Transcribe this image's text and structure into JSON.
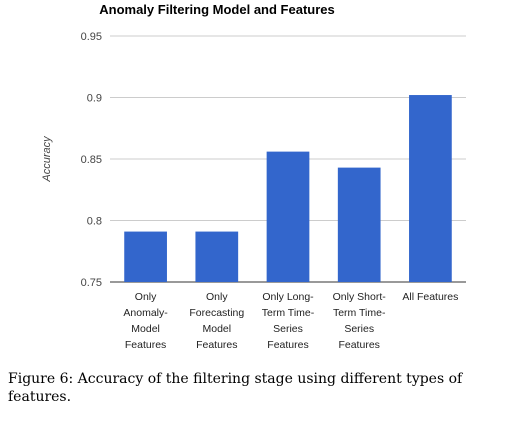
{
  "chart_data": {
    "type": "bar",
    "title": "Anomaly Filtering Model and Features",
    "ylabel": "Accuracy",
    "xlabel": "",
    "ylim": [
      0.75,
      0.95
    ],
    "yticks": [
      "0.75",
      "0.8",
      "0.85",
      "0.9",
      "0.95"
    ],
    "categories": [
      "Only Anomaly-Model Features",
      "Only Forecasting Model Features",
      "Only Long-Term Time-Series Features",
      "Only Short-Term Time-Series Features",
      "All Features"
    ],
    "category_lines": [
      [
        "Only",
        "Anomaly-",
        "Model",
        "Features"
      ],
      [
        "Only",
        "Forecasting",
        "Model",
        "Features"
      ],
      [
        "Only Long-",
        "Term Time-",
        "Series",
        "Features"
      ],
      [
        "Only Short-",
        "Term Time-",
        "Series",
        "Features"
      ],
      [
        "All Features"
      ]
    ],
    "values": [
      0.791,
      0.791,
      0.856,
      0.843,
      0.902
    ],
    "grid": true,
    "legend": "none",
    "bar_color": "#3366cc",
    "grid_color": "#cccccc"
  },
  "caption": "Figure 6: Accuracy of the filtering stage using different types of features."
}
